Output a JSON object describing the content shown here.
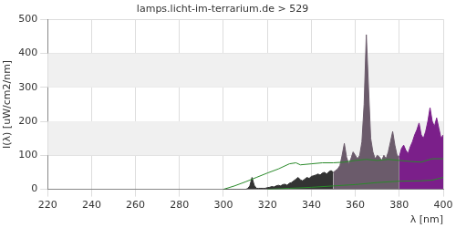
{
  "chart_data": {
    "type": "area",
    "title": "lamps.licht-im-terrarium.de > 529",
    "x_label": "λ [nm]",
    "y_label": "I(λ) [uW/cm2/nm]",
    "xlim": [
      220,
      400
    ],
    "xticks": [
      220,
      240,
      260,
      280,
      300,
      320,
      340,
      360,
      380,
      400
    ],
    "ylim": [
      0,
      500
    ],
    "yticks": [
      0,
      100,
      200,
      300,
      400,
      500
    ],
    "grid": true,
    "series": [
      {
        "color": "#333333",
        "x": [
          300,
          301,
          302,
          303,
          304,
          305,
          306,
          307,
          308,
          309,
          310,
          311,
          312,
          313,
          314,
          315,
          316,
          317,
          318,
          319,
          320,
          321,
          322,
          323,
          324,
          325,
          326,
          327,
          328,
          329,
          330,
          331,
          332,
          333,
          334,
          335,
          336,
          337,
          338,
          339,
          340,
          341,
          342,
          343,
          344,
          345,
          346,
          347,
          348,
          349,
          350
        ],
        "values": [
          0,
          0,
          0,
          0,
          0,
          0,
          0,
          0,
          0,
          0,
          0,
          2,
          10,
          35,
          12,
          3,
          3,
          3,
          3,
          3,
          5,
          6,
          8,
          7,
          10,
          12,
          10,
          14,
          15,
          12,
          18,
          20,
          25,
          30,
          35,
          28,
          25,
          30,
          35,
          32,
          38,
          40,
          42,
          45,
          42,
          48,
          50,
          45,
          52,
          55,
          50
        ]
      },
      {
        "color": "#6b5b6b",
        "x": [
          350,
          351,
          352,
          353,
          354,
          355,
          356,
          357,
          358,
          359,
          360,
          361,
          362,
          363,
          364,
          365,
          366,
          367,
          368,
          369,
          370,
          371,
          372,
          373,
          374,
          375,
          376,
          377,
          378,
          379,
          380
        ],
        "values": [
          50,
          55,
          60,
          70,
          100,
          135,
          95,
          75,
          90,
          110,
          100,
          90,
          100,
          140,
          250,
          455,
          300,
          150,
          110,
          90,
          100,
          95,
          85,
          100,
          90,
          110,
          140,
          170,
          130,
          100,
          95
        ]
      },
      {
        "color": "#7b1f8a",
        "x": [
          380,
          381,
          382,
          383,
          384,
          385,
          386,
          387,
          388,
          389,
          390,
          391,
          392,
          393,
          394,
          395,
          396,
          397,
          398,
          399,
          400
        ],
        "values": [
          95,
          120,
          130,
          115,
          105,
          125,
          140,
          160,
          175,
          195,
          160,
          150,
          170,
          200,
          240,
          200,
          185,
          210,
          180,
          150,
          160
        ]
      },
      {
        "type": "line",
        "color": "#2a8a2a",
        "x": [
          300,
          305,
          310,
          315,
          320,
          325,
          330,
          333,
          335,
          340,
          345,
          350,
          355,
          360,
          365,
          370,
          375,
          380,
          385,
          390,
          395,
          400
        ],
        "values": [
          0,
          10,
          22,
          35,
          48,
          60,
          75,
          78,
          72,
          75,
          78,
          78,
          80,
          85,
          88,
          85,
          88,
          85,
          82,
          80,
          90,
          90
        ]
      },
      {
        "type": "line",
        "color": "#2a8a2a",
        "x": [
          320,
          330,
          340,
          350,
          360,
          370,
          380,
          390,
          395,
          400
        ],
        "values": [
          0,
          3,
          6,
          10,
          14,
          20,
          24,
          25,
          27,
          35
        ]
      }
    ]
  }
}
